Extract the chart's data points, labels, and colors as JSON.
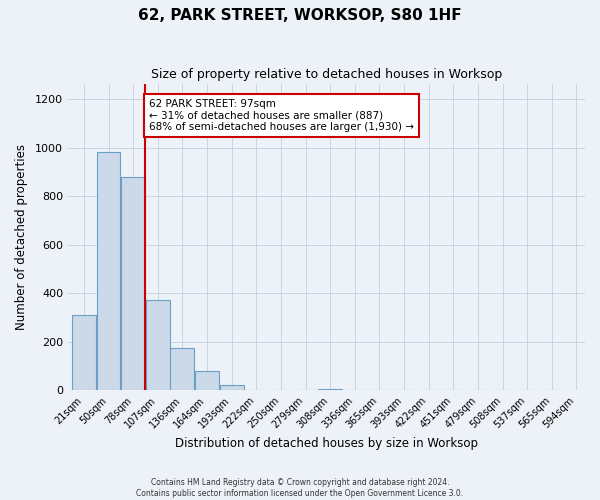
{
  "title": "62, PARK STREET, WORKSOP, S80 1HF",
  "subtitle": "Size of property relative to detached houses in Worksop",
  "xlabel": "Distribution of detached houses by size in Worksop",
  "ylabel": "Number of detached properties",
  "bar_values": [
    310,
    980,
    880,
    370,
    175,
    80,
    20,
    0,
    0,
    0,
    5,
    0,
    0,
    0,
    0,
    0,
    0,
    0,
    0,
    0
  ],
  "bin_labels": [
    "21sqm",
    "50sqm",
    "78sqm",
    "107sqm",
    "136sqm",
    "164sqm",
    "193sqm",
    "222sqm",
    "250sqm",
    "279sqm",
    "308sqm",
    "336sqm",
    "365sqm",
    "393sqm",
    "422sqm",
    "451sqm",
    "479sqm",
    "508sqm",
    "537sqm",
    "565sqm",
    "594sqm"
  ],
  "bar_color": "#ccd9e8",
  "bar_edge_color": "#6aa0c8",
  "red_line_x": 2.5,
  "red_line_color": "#cc0000",
  "annotation_box_text": "62 PARK STREET: 97sqm\n← 31% of detached houses are smaller (887)\n68% of semi-detached houses are larger (1,930) →",
  "annotation_box_facecolor": "#ffffff",
  "annotation_box_edgecolor": "#cc0000",
  "ylim": [
    0,
    1260
  ],
  "yticks": [
    0,
    200,
    400,
    600,
    800,
    1000,
    1200
  ],
  "grid_color": "#c8d4e4",
  "background_color": "#edf2f8",
  "footer_line1": "Contains HM Land Registry data © Crown copyright and database right 2024.",
  "footer_line2": "Contains public sector information licensed under the Open Government Licence 3.0.",
  "figsize": [
    6.0,
    5.0
  ],
  "dpi": 100
}
